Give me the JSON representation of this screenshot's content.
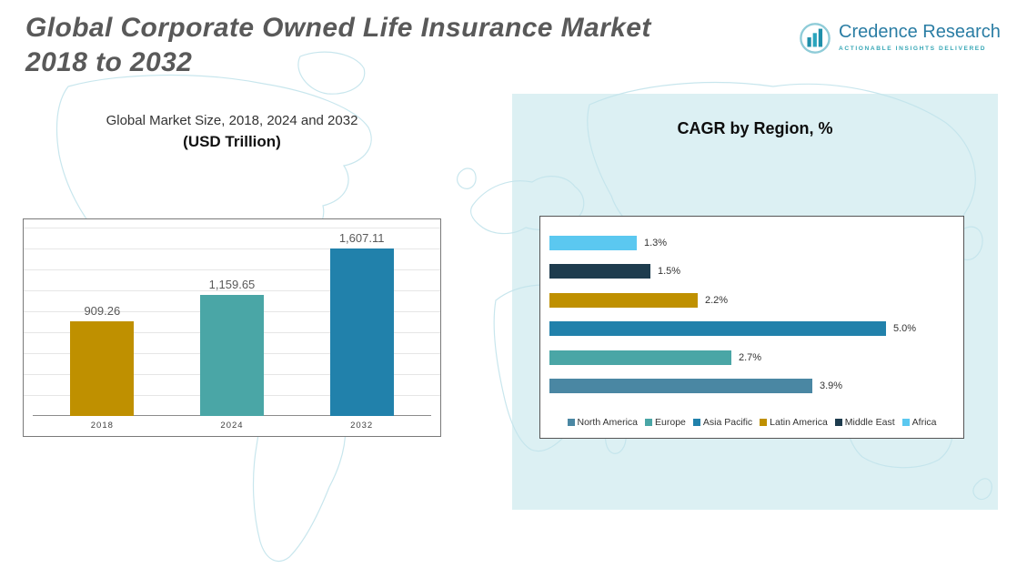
{
  "header": {
    "title_line1": "Global Corporate Owned Life Insurance Market",
    "title_line2": "2018 to 2032",
    "brand": {
      "name": "Credence Research",
      "tagline": "Actionable Insights Delivered"
    }
  },
  "chart_data": [
    {
      "type": "bar",
      "orientation": "vertical",
      "title": "Global Market Size, 2018, 2024 and 2032",
      "subtitle": "(USD Trillion)",
      "categories": [
        "2018",
        "2024",
        "2032"
      ],
      "values": [
        909.26,
        1159.65,
        1607.11
      ],
      "value_labels": [
        "909.26",
        "1,159.65",
        "1,607.11"
      ],
      "bar_colors": [
        "#BF9000",
        "#4AA6A6",
        "#2181AB"
      ],
      "xlabel": "",
      "ylabel": "",
      "ylim": [
        0,
        1800
      ],
      "grid": true,
      "legend_position": "none"
    },
    {
      "type": "bar",
      "orientation": "horizontal",
      "title": "CAGR by Region, %",
      "categories": [
        "Africa",
        "Middle East",
        "Latin America",
        "Asia Pacific",
        "Europe",
        "North America"
      ],
      "values": [
        1.3,
        1.5,
        2.2,
        5.0,
        2.7,
        3.9
      ],
      "value_labels": [
        "1.3%",
        "1.5%",
        "2.2%",
        "5.0%",
        "2.7%",
        "3.9%"
      ],
      "bar_colors": [
        "#5BC8F0",
        "#1E3C4E",
        "#BF9000",
        "#2181AB",
        "#4AA6A6",
        "#4A87A3"
      ],
      "xlim": [
        0,
        5.5
      ],
      "grid": false,
      "legend_position": "bottom",
      "legend": [
        {
          "label": "North America",
          "color": "#4A87A3"
        },
        {
          "label": "Europe",
          "color": "#4AA6A6"
        },
        {
          "label": "Asia Pacific",
          "color": "#2181AB"
        },
        {
          "label": "Latin America",
          "color": "#BF9000"
        },
        {
          "label": "Middle East",
          "color": "#1E3C4E"
        },
        {
          "label": "Africa",
          "color": "#5BC8F0"
        }
      ]
    }
  ]
}
